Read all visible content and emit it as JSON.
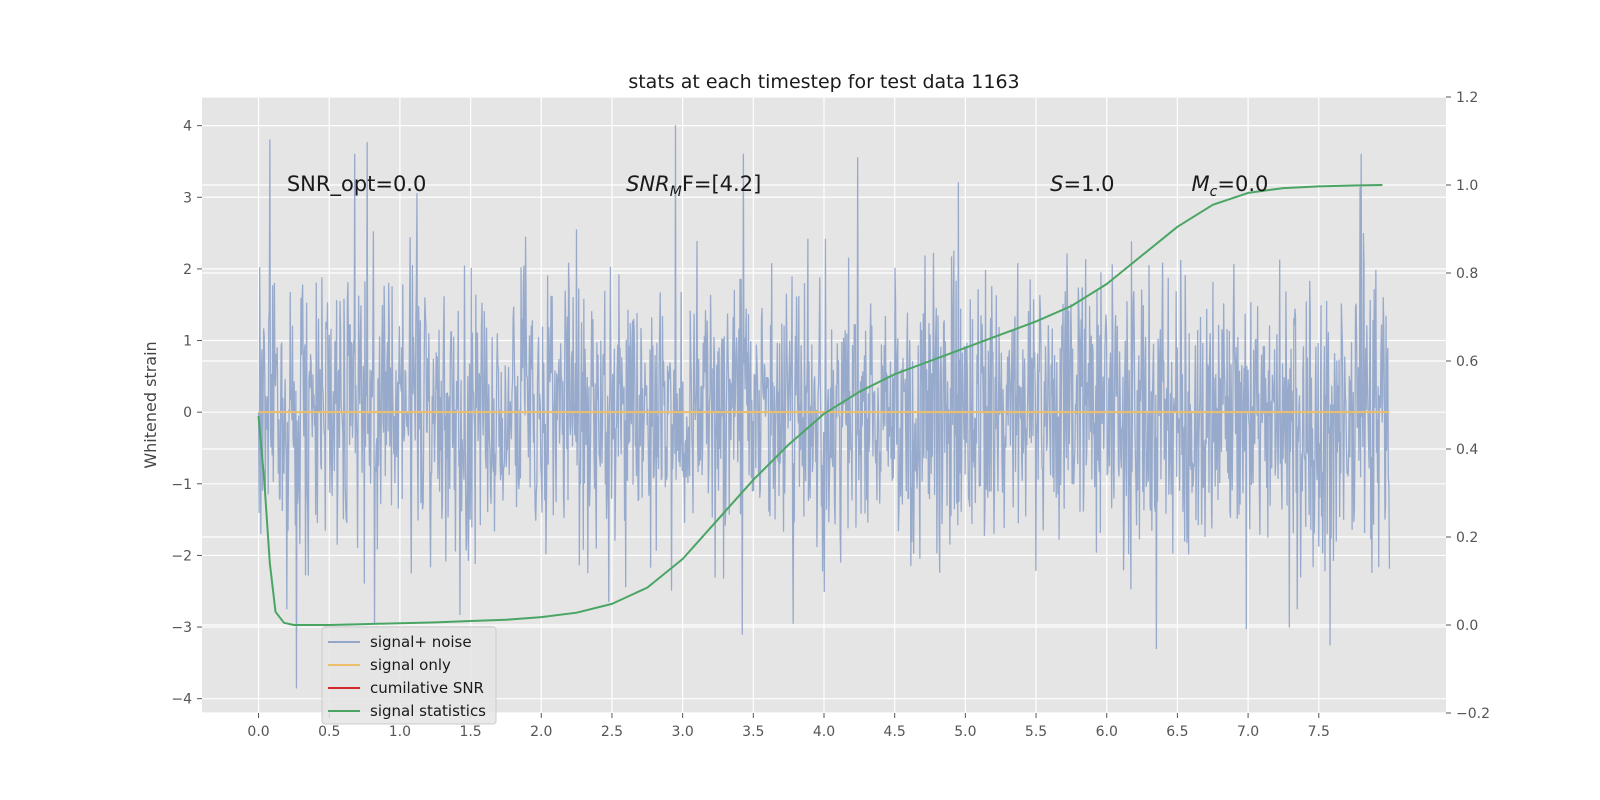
{
  "chart_data": {
    "type": "line",
    "title": "stats at each timestep for test data 1163",
    "xlabel": "",
    "ylabel": "Whitened strain",
    "y2label": "",
    "xlim": [
      -0.4,
      8.4
    ],
    "ylim": [
      -4.2,
      4.4
    ],
    "y2lim": [
      -0.2,
      1.2
    ],
    "xticks": [
      0.0,
      0.5,
      1.0,
      1.5,
      2.0,
      2.5,
      3.0,
      3.5,
      4.0,
      4.5,
      5.0,
      5.5,
      6.0,
      6.5,
      7.0,
      7.5
    ],
    "xtick_labels": [
      "0.0",
      "0.5",
      "1.0",
      "1.5",
      "2.0",
      "2.5",
      "3.0",
      "3.5",
      "4.0",
      "4.5",
      "5.0",
      "5.5",
      "6.0",
      "6.5",
      "7.0",
      "7.5"
    ],
    "yticks": [
      -4,
      -3,
      -2,
      -1,
      0,
      1,
      2,
      3,
      4
    ],
    "ytick_labels": [
      "−4",
      "−3",
      "−2",
      "−1",
      "0",
      "1",
      "2",
      "3",
      "4"
    ],
    "y2ticks": [
      -0.2,
      0.0,
      0.2,
      0.4,
      0.6,
      0.8,
      1.0,
      1.2
    ],
    "y2tick_labels": [
      "−0.2",
      "0.0",
      "0.2",
      "0.4",
      "0.6",
      "0.8",
      "1.0",
      "1.2"
    ],
    "grid": true,
    "legend_position": "lower-left",
    "annotations": [
      {
        "prefix": "SNR_opt=0.0",
        "sub": "",
        "suffix": "",
        "italic": false,
        "x": 0.2,
        "y": 3.2
      },
      {
        "prefix": "SNR",
        "sub": "M",
        "suffix": "F=[4.2]",
        "italic": true,
        "x": 2.6,
        "y": 3.2
      },
      {
        "prefix": "S",
        "sub": "",
        "suffix": "=1.0",
        "italic": true,
        "x": 5.6,
        "y": 3.2
      },
      {
        "prefix": "M",
        "sub": "c",
        "suffix": "=0.0",
        "italic": true,
        "x": 6.6,
        "y": 3.2
      }
    ],
    "series": [
      {
        "name": "signal+ noise",
        "color": "#92a6ca",
        "axis": "left",
        "style": "noise",
        "x_range": [
          0.0,
          8.0
        ],
        "samples": 2000,
        "std": 0.95,
        "seed": 1163,
        "notable_peaks": [
          {
            "x": 0.08,
            "y": 3.8
          },
          {
            "x": 0.27,
            "y": -3.85
          },
          {
            "x": 0.68,
            "y": 3.6
          },
          {
            "x": 1.12,
            "y": 3.05
          },
          {
            "x": 2.95,
            "y": 4.0
          },
          {
            "x": 3.43,
            "y": 3.6
          },
          {
            "x": 4.24,
            "y": 3.55
          },
          {
            "x": 4.95,
            "y": 3.2
          },
          {
            "x": 6.35,
            "y": -3.3
          },
          {
            "x": 7.29,
            "y": -3.0
          },
          {
            "x": 7.58,
            "y": -3.25
          },
          {
            "x": 7.8,
            "y": 3.6
          },
          {
            "x": 3.42,
            "y": -3.1
          },
          {
            "x": 0.82,
            "y": -2.95
          }
        ]
      },
      {
        "name": "signal only",
        "color": "#eebf6a",
        "axis": "left",
        "style": "line",
        "x": [
          0.0,
          8.0
        ],
        "y": [
          0.0,
          0.0
        ]
      },
      {
        "name": "cumilative SNR",
        "color": "#d62728",
        "axis": "right",
        "style": "line",
        "x": [],
        "y": []
      },
      {
        "name": "signal statistics",
        "color": "#4aa564",
        "axis": "right",
        "style": "line",
        "x": [
          0.0,
          0.04,
          0.08,
          0.12,
          0.18,
          0.25,
          0.35,
          0.5,
          0.75,
          1.0,
          1.25,
          1.5,
          1.75,
          2.0,
          2.25,
          2.5,
          2.75,
          3.0,
          3.25,
          3.5,
          3.75,
          4.0,
          4.25,
          4.5,
          4.75,
          5.0,
          5.25,
          5.5,
          5.75,
          6.0,
          6.25,
          6.5,
          6.75,
          7.0,
          7.25,
          7.5,
          7.75,
          7.95
        ],
        "y": [
          0.475,
          0.33,
          0.14,
          0.03,
          0.005,
          0.0,
          0.0,
          0.0,
          0.002,
          0.004,
          0.006,
          0.009,
          0.012,
          0.018,
          0.028,
          0.048,
          0.085,
          0.15,
          0.24,
          0.33,
          0.41,
          0.48,
          0.53,
          0.57,
          0.6,
          0.63,
          0.66,
          0.69,
          0.725,
          0.775,
          0.84,
          0.905,
          0.955,
          0.982,
          0.993,
          0.997,
          0.999,
          1.0
        ]
      }
    ]
  }
}
